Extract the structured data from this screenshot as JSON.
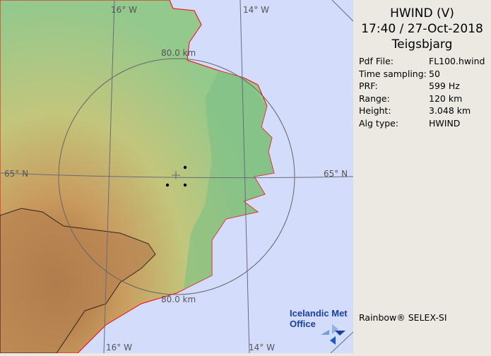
{
  "panel": {
    "product": "HWIND (V)",
    "datetime": "17:40 / 27-Oct-2018",
    "site": "Teigsbjarg",
    "params": [
      {
        "label": "Pdf File:",
        "value": "FL100.hwind"
      },
      {
        "label": "Time sampling:",
        "value": "50"
      },
      {
        "label": "PRF:",
        "value": "599 Hz"
      },
      {
        "label": "Range:",
        "value": "120 km"
      },
      {
        "label": "Height:",
        "value": "3.048 km"
      },
      {
        "label": "Alg type:",
        "value": "HWIND"
      }
    ],
    "credit": "Rainbow® SELEX-SI"
  },
  "map": {
    "grid_labels": {
      "lon_top_left": "16° W",
      "lon_top_right": "14° W",
      "lon_bottom_left": "16° W",
      "lon_bottom_right": "14° W",
      "lat_left": "65° N",
      "lat_right": "65° N"
    },
    "range_labels": {
      "top": "80.0 km",
      "bottom": "80.0 km"
    },
    "logo": {
      "line1": "Icelandic Met",
      "line2": "Office"
    },
    "colors": {
      "sea": "#d4dcfb",
      "lowland": "#8cc58a",
      "highland": "#c9a06a",
      "coast": "#ff0000"
    }
  }
}
